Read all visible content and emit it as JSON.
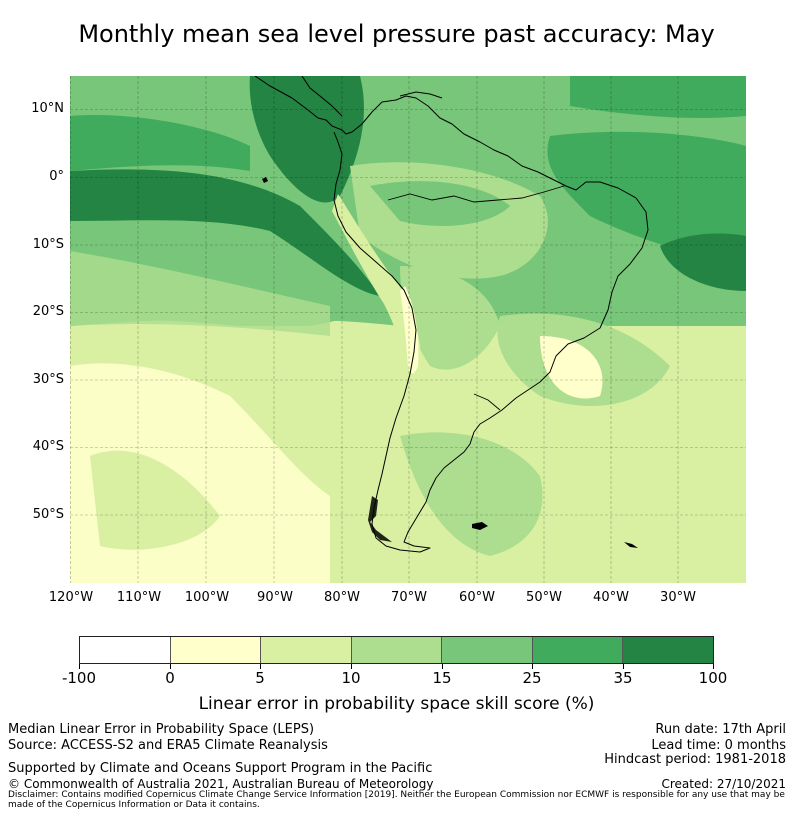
{
  "title": "Monthly mean sea level pressure past accuracy: May",
  "map": {
    "lat_labels": [
      "10°N",
      "0°",
      "10°S",
      "20°S",
      "30°S",
      "40°S",
      "50°S"
    ],
    "lon_labels": [
      "120°W",
      "110°W",
      "100°W",
      "90°W",
      "80°W",
      "70°W",
      "60°W",
      "50°W",
      "40°W",
      "30°W"
    ],
    "colors": {
      "c0": "#ffffff",
      "c1": "#ffffcc",
      "c2": "#d9f0a3",
      "c3": "#addd8e",
      "c4": "#78c679",
      "c5": "#41ab5d",
      "c6": "#238443",
      "coast": "#000000"
    }
  },
  "colorbar": {
    "ticks": [
      "-100",
      "0",
      "5",
      "10",
      "15",
      "25",
      "35",
      "100"
    ],
    "label": "Linear error in probability space skill score (%)"
  },
  "footer": {
    "left1": "Median Linear Error in Probability Space (LEPS)",
    "left2": "Source: ACCESS-S2 and ERA5 Climate Reanalysis",
    "support": "Supported by Climate and Oceans Support Program in the Pacific",
    "copyright": "© Commonwealth of Australia 2021, Australian Bureau of Meteorology",
    "run_date": "Run date: 17th April",
    "lead_time": "Lead time: 0 months",
    "hindcast": "Hindcast period: 1981-2018",
    "created": "Created: 27/10/2021",
    "disclaimer": "Disclaimer: Contains modified Copernicus Climate Change Service Information [2019]. Neither the European Commission nor ECMWF is responsible for any use that may be made of the Copernicus Information or Data it contains."
  }
}
